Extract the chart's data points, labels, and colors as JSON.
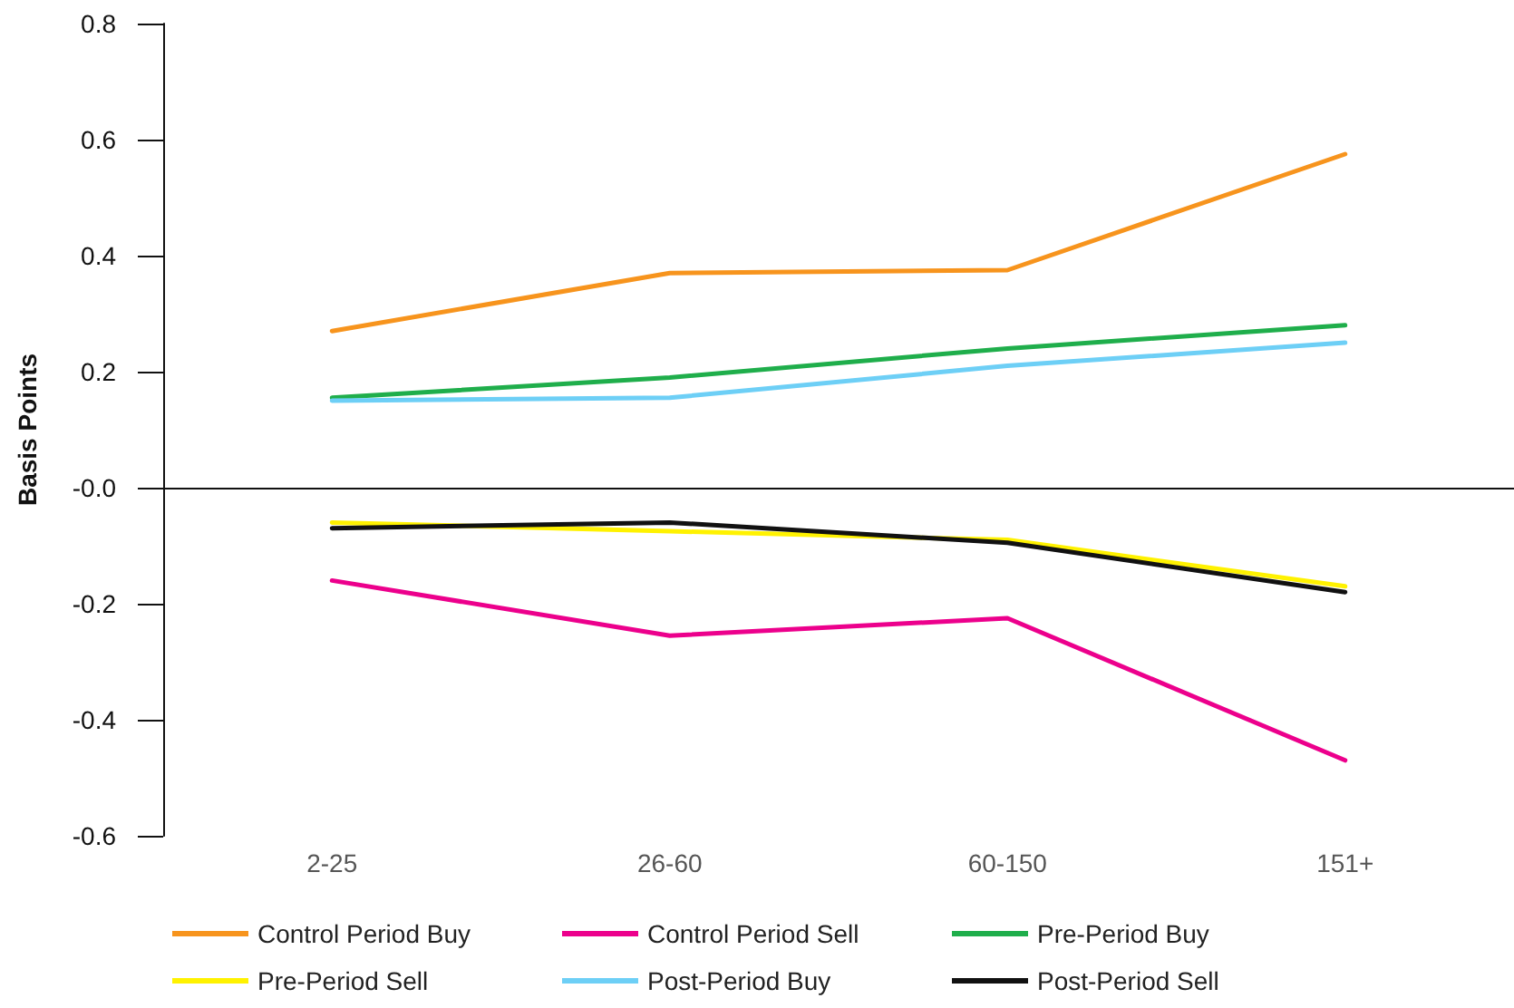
{
  "chart_data": {
    "type": "line",
    "ylabel": "Basis Points",
    "categories": [
      "2-25",
      "26-60",
      "60-150",
      "151+"
    ],
    "series": [
      {
        "name": "Control Period Buy",
        "color": "#f7941d",
        "values": [
          0.27,
          0.37,
          0.375,
          0.575
        ]
      },
      {
        "name": "Control Period Sell",
        "color": "#ec008c",
        "values": [
          -0.16,
          -0.255,
          -0.225,
          -0.47
        ]
      },
      {
        "name": "Pre-Period Buy",
        "color": "#1fae4b",
        "values": [
          0.155,
          0.19,
          0.24,
          0.28
        ]
      },
      {
        "name": "Pre-Period Sell",
        "color": "#fff200",
        "values": [
          -0.06,
          -0.075,
          -0.09,
          -0.17
        ]
      },
      {
        "name": "Post-Period Buy",
        "color": "#6dcff6",
        "values": [
          0.15,
          0.155,
          0.21,
          0.25
        ]
      },
      {
        "name": "Post-Period Sell",
        "color": "#111111",
        "values": [
          -0.07,
          -0.06,
          -0.095,
          -0.18
        ]
      }
    ],
    "ylim": [
      -0.6,
      0.8
    ],
    "yticks": [
      -0.6,
      -0.4,
      -0.2,
      {
        "value": 0,
        "label": "-0.0"
      },
      0.2,
      0.4,
      0.6,
      0.8
    ],
    "legend": "bottom",
    "marker": "none",
    "line_style": "solid"
  }
}
